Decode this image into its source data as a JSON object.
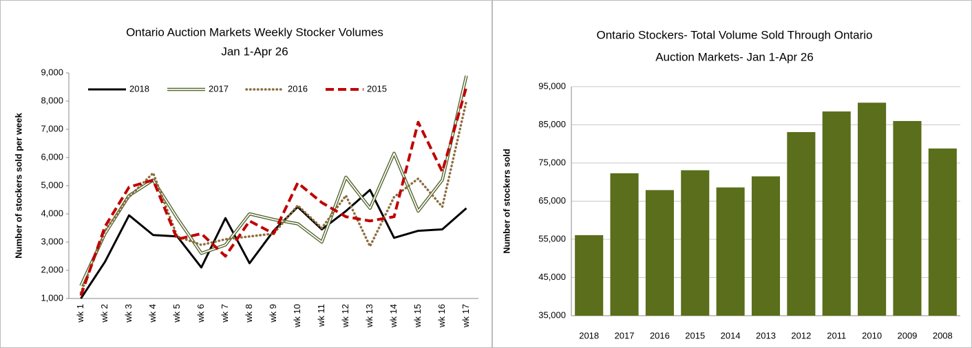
{
  "chart_data": [
    {
      "type": "line",
      "title": [
        "Ontario Auction Markets Weekly Stocker Volumes",
        "Jan 1-Apr 26"
      ],
      "y_label": "Number of stockers sold per week",
      "categories": [
        "wk 1",
        "wk 2",
        "wk 3",
        "wk 4",
        "wk 5",
        "wk 6",
        "wk 7",
        "wk 8",
        "wk 9",
        "wk 10",
        "wk 11",
        "wk 12",
        "wk 13",
        "wk 14",
        "wk 15",
        "wk 16",
        "wk 17"
      ],
      "series": [
        {
          "name": "2018",
          "color": "#000000",
          "style": "solid",
          "values": [
            1000,
            2300,
            3950,
            3250,
            3200,
            2100,
            3850,
            2250,
            3400,
            4250,
            3450,
            4100,
            4850,
            3150,
            3400,
            3450,
            4200
          ]
        },
        {
          "name": "2017",
          "color": "#4f6228",
          "style": "double",
          "values": [
            1450,
            3300,
            4650,
            5200,
            3850,
            2600,
            2900,
            4000,
            3800,
            3650,
            3000,
            5300,
            4200,
            6150,
            4100,
            5200,
            8900
          ]
        },
        {
          "name": "2016",
          "color": "#8c6d3f",
          "style": "dotted",
          "values": [
            1200,
            3400,
            4600,
            5450,
            3200,
            2900,
            3100,
            3200,
            3300,
            4300,
            3500,
            4650,
            2850,
            4600,
            5250,
            4250,
            8000
          ]
        },
        {
          "name": "2015",
          "color": "#c00000",
          "style": "dashed",
          "values": [
            1100,
            3550,
            4950,
            5200,
            3100,
            3300,
            2500,
            3750,
            3300,
            5100,
            4400,
            3900,
            3750,
            3900,
            7250,
            5500,
            8500
          ]
        }
      ],
      "ylim": [
        1000,
        9000
      ],
      "yticks": [
        {
          "value": 1000,
          "label": "1,000"
        },
        {
          "value": 2000,
          "label": "2,000"
        },
        {
          "value": 3000,
          "label": "3,000"
        },
        {
          "value": 4000,
          "label": "4,000"
        },
        {
          "value": 5000,
          "label": "5,000"
        },
        {
          "value": 6000,
          "label": "6,000"
        },
        {
          "value": 7000,
          "label": "7,000"
        },
        {
          "value": 8000,
          "label": "8,000"
        },
        {
          "value": 9000,
          "label": "9,000"
        }
      ],
      "grid": false,
      "legend": "top-left"
    },
    {
      "type": "bar",
      "title": [
        "Ontario Stockers- Total Volume Sold Through Ontario",
        "Auction Markets- Jan 1-Apr 26"
      ],
      "y_label": "Number of stockers sold",
      "categories": [
        "2018",
        "2017",
        "2016",
        "2015",
        "2014",
        "2013",
        "2012",
        "2011",
        "2010",
        "2009",
        "2008"
      ],
      "values": [
        56100,
        72300,
        67900,
        73100,
        68600,
        71500,
        83100,
        88500,
        90800,
        86000,
        78800
      ],
      "color": "#5a6e1b",
      "ylim": [
        35000,
        95000
      ],
      "yticks": [
        {
          "value": 35000,
          "label": "35,000"
        },
        {
          "value": 45000,
          "label": "45,000"
        },
        {
          "value": 55000,
          "label": "55,000"
        },
        {
          "value": 65000,
          "label": "65,000"
        },
        {
          "value": 75000,
          "label": "75,000"
        },
        {
          "value": 85000,
          "label": "85,000"
        },
        {
          "value": 95000,
          "label": "95,000"
        }
      ],
      "grid": true
    }
  ]
}
